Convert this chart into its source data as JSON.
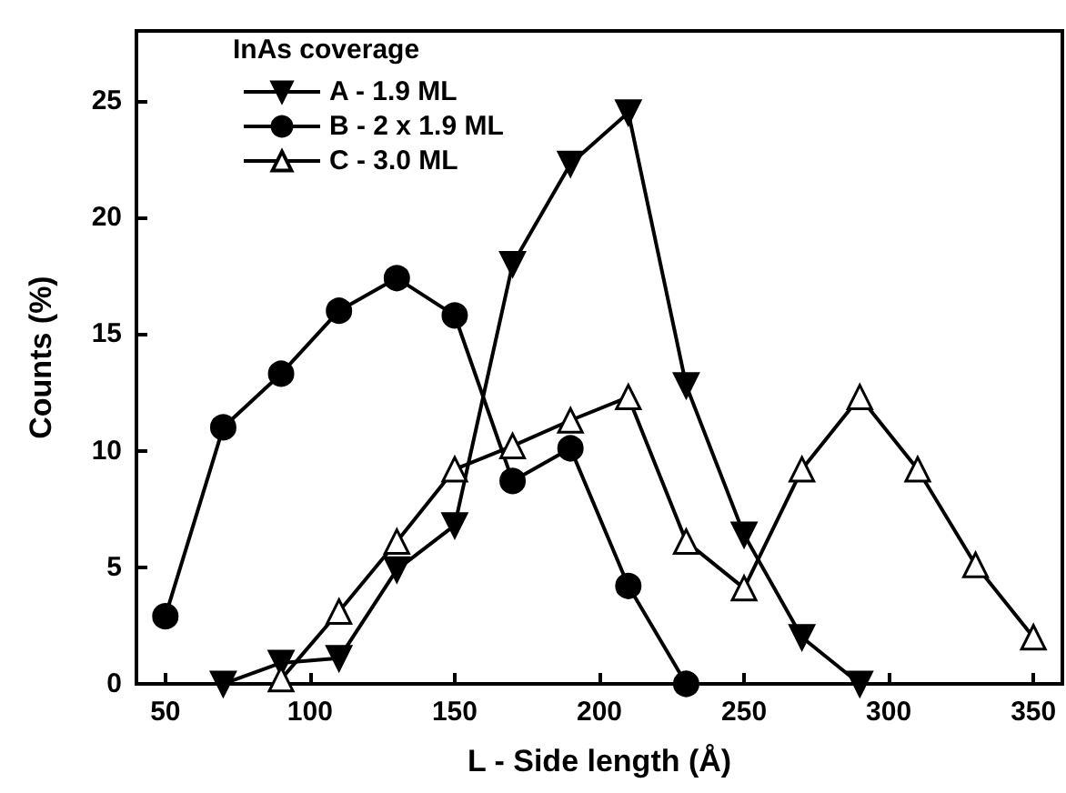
{
  "chart_data": {
    "type": "line",
    "xlabel": "L - Side length (Å)",
    "ylabel": "Counts (%)",
    "legend_title": "InAs coverage",
    "xlim": [
      40,
      360
    ],
    "xticks": [
      50,
      100,
      150,
      200,
      250,
      300,
      350
    ],
    "ylim": [
      0,
      28
    ],
    "yticks": [
      0,
      5,
      10,
      15,
      20,
      25
    ],
    "grid": false,
    "legend": "top left",
    "series": [
      {
        "name": "A - 1.9 ML",
        "color": "#000000",
        "marker": "triangle-down",
        "x": [
          70,
          90,
          110,
          130,
          150,
          170,
          190,
          210,
          230,
          250,
          270,
          290
        ],
        "values": [
          0,
          0.9,
          1.1,
          4.9,
          6.8,
          18,
          22.3,
          24.5,
          12.8,
          6.4,
          2.0,
          0
        ]
      },
      {
        "name": "B - 2 x 1.9 ML",
        "color": "#000000",
        "marker": "circle",
        "x": [
          50,
          70,
          90,
          110,
          130,
          150,
          170,
          190,
          210,
          230
        ],
        "values": [
          2.9,
          11.0,
          13.3,
          16.0,
          17.4,
          15.8,
          8.7,
          10.1,
          4.2,
          0
        ]
      },
      {
        "name": "C - 3.0 ML",
        "color": "#000000",
        "marker": "triangle-open",
        "x": [
          90,
          110,
          130,
          150,
          170,
          190,
          210,
          230,
          250,
          270,
          290,
          310,
          330,
          350
        ],
        "values": [
          0.2,
          3.1,
          6.1,
          9.2,
          10.2,
          11.3,
          12.3,
          6.1,
          4.1,
          9.2,
          12.3,
          9.2,
          5.1,
          2.0
        ]
      }
    ]
  }
}
